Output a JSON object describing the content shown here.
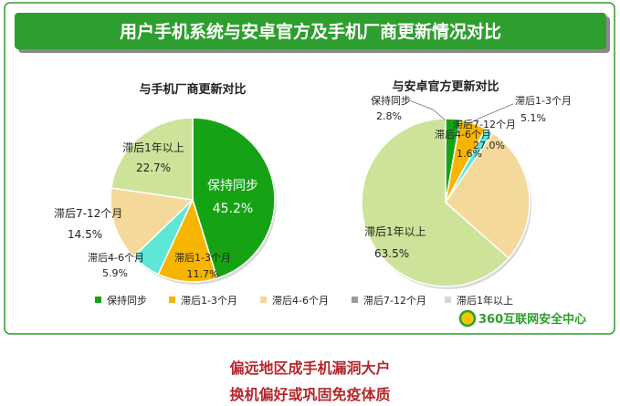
{
  "banner": {
    "title": "用户手机系统与安卓官方及手机厂商更新情况对比"
  },
  "colors": {
    "banner_green": "#2e9e2e",
    "sync": "#15a315",
    "lag_1_3": "#f7b500",
    "lag_4_6": "#f5d99a",
    "lag_7_12": "#5ee6d6",
    "lag_1y": "#cde39a",
    "legend_7_12": "#9a9a9a",
    "legend_1y": "#d6d6d6",
    "caption_red": "#b3282d"
  },
  "chart_data": [
    {
      "type": "pie",
      "title": "与手机厂商更新对比",
      "slices": [
        {
          "label": "保持同步",
          "value": 45.2,
          "value_label": "45.2%"
        },
        {
          "label": "滞后1-3个月",
          "value": 11.7,
          "value_label": "11.7%"
        },
        {
          "label": "滞后4-6个月",
          "value": 5.9,
          "value_label": "5.9%"
        },
        {
          "label": "滞后7-12个月",
          "value": 14.5,
          "value_label": "14.5%"
        },
        {
          "label": "滞后1年以上",
          "value": 22.7,
          "value_label": "22.7%"
        }
      ]
    },
    {
      "type": "pie",
      "title": "与安卓官方更新对比",
      "slices": [
        {
          "label": "保持同步",
          "value": 2.8,
          "value_label": "2.8%"
        },
        {
          "label": "滞后1-3个月",
          "value": 5.1,
          "value_label": "5.1%"
        },
        {
          "label": "滞后4-6个月",
          "value": 1.6,
          "value_label": "1.6%"
        },
        {
          "label": "滞后7-12个月",
          "value": 27.0,
          "value_label": "27.0%"
        },
        {
          "label": "滞后1年以上",
          "value": 63.5,
          "value_label": "63.5%"
        }
      ]
    }
  ],
  "legend": [
    {
      "label": "保持同步",
      "color_key": "sync"
    },
    {
      "label": "滞后1-3个月",
      "color_key": "lag_1_3"
    },
    {
      "label": "滞后4-6个月",
      "color_key": "lag_4_6"
    },
    {
      "label": "滞后7-12个月",
      "color_key": "legend_7_12"
    },
    {
      "label": "滞后1年以上",
      "color_key": "legend_1y"
    }
  ],
  "logo": {
    "text": "360互联网安全中心"
  },
  "captions": [
    "偏远地区成手机漏洞大户",
    "换机偏好或巩固免疫体质"
  ]
}
